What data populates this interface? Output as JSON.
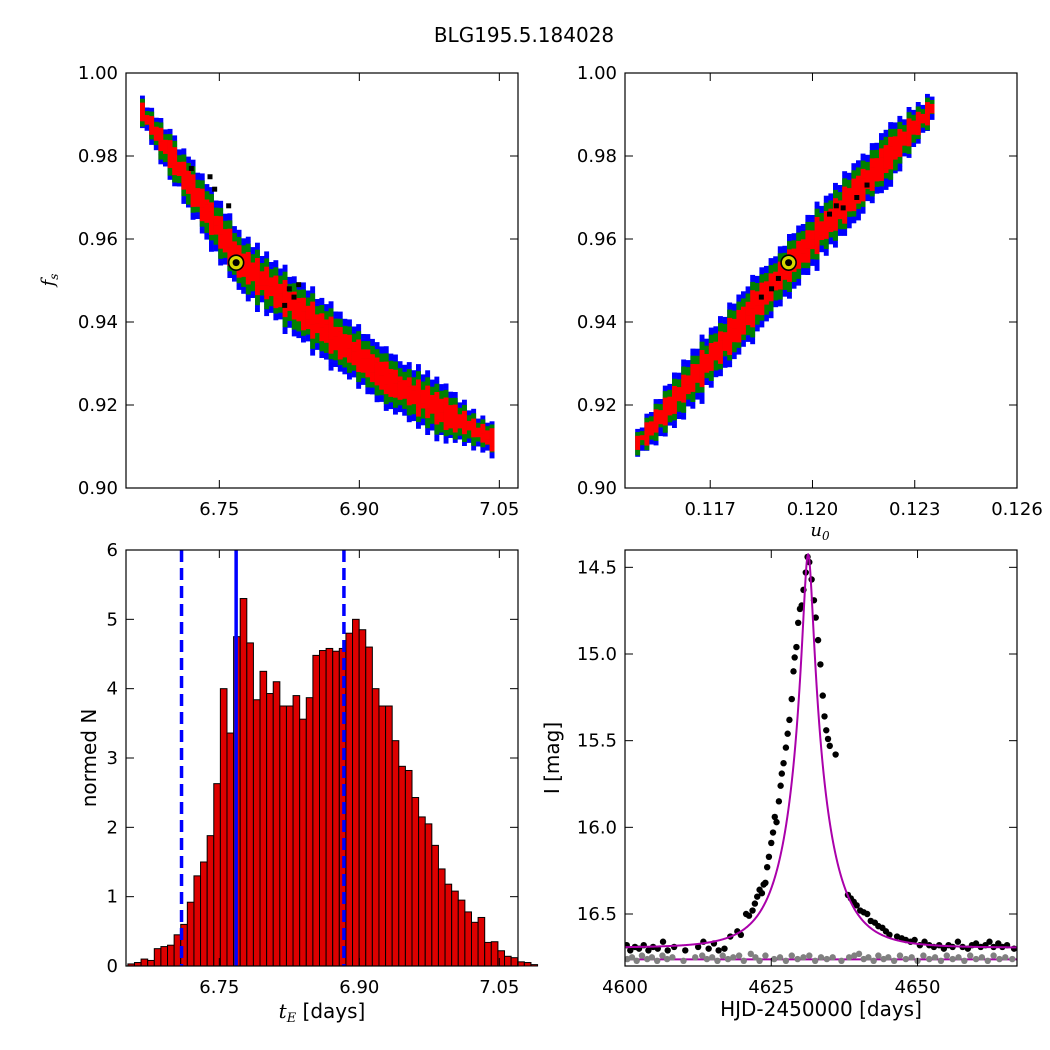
{
  "title": "BLG195.5.184028",
  "chart_data": [
    {
      "id": "panel_fs_te",
      "type": "heatmap",
      "xlabel": "",
      "ylabel": "f_s",
      "xlim": [
        6.65,
        7.07
      ],
      "ylim": [
        0.9,
        1.0
      ],
      "xticks": [
        6.75,
        6.9,
        7.05
      ],
      "xtick_labels": [
        "6.75",
        "6.90",
        "7.05"
      ],
      "yticks": [
        0.9,
        0.92,
        0.94,
        0.96,
        0.98,
        1.0
      ],
      "ytick_labels": [
        "0.90",
        "0.92",
        "0.94",
        "0.96",
        "0.98",
        "1.00"
      ],
      "region": {
        "spine": [
          [
            6.665,
            0.991
          ],
          [
            6.77,
            0.9545
          ],
          [
            6.93,
            0.926
          ],
          [
            7.04,
            0.912
          ]
        ],
        "bands": [
          {
            "level": "outer",
            "color": "#0000ff",
            "halfwidth": 0.0067
          },
          {
            "level": "middle",
            "color": "#008000",
            "halfwidth": 0.005
          },
          {
            "level": "inner",
            "color": "#ff0000",
            "halfwidth": 0.003
          }
        ]
      },
      "black_points": [
        [
          6.74,
          0.975
        ],
        [
          6.745,
          0.972
        ],
        [
          6.76,
          0.968
        ],
        [
          6.72,
          0.977
        ],
        [
          6.825,
          0.948
        ],
        [
          6.83,
          0.946
        ],
        [
          6.82,
          0.944
        ],
        [
          6.835,
          0.949
        ]
      ],
      "best_fit": {
        "x": 6.768,
        "y": 0.9543
      }
    },
    {
      "id": "panel_fs_u0",
      "type": "heatmap",
      "xlabel": "u_0",
      "ylabel": "",
      "xlim": [
        0.1145,
        0.126
      ],
      "ylim": [
        0.9,
        1.0
      ],
      "xticks": [
        0.117,
        0.12,
        0.123,
        0.126
      ],
      "xtick_labels": [
        "0.117",
        "0.120",
        "0.123",
        "0.126"
      ],
      "yticks": [
        0.9,
        0.92,
        0.94,
        0.96,
        0.98,
        1.0
      ],
      "ytick_labels": [
        "0.90",
        "0.92",
        "0.94",
        "0.96",
        "0.98",
        "1.00"
      ],
      "region": {
        "spine": [
          [
            0.1148,
            0.911
          ],
          [
            0.1193,
            0.9543
          ],
          [
            0.1235,
            0.9925
          ]
        ],
        "bands": [
          {
            "level": "outer",
            "color": "#0000ff",
            "halfwidth": 0.0067
          },
          {
            "level": "middle",
            "color": "#008000",
            "halfwidth": 0.005
          },
          {
            "level": "inner",
            "color": "#ff0000",
            "halfwidth": 0.003
          }
        ]
      },
      "black_points": [
        [
          0.1185,
          0.946
        ],
        [
          0.1188,
          0.948
        ],
        [
          0.119,
          0.9505
        ],
        [
          0.1205,
          0.966
        ],
        [
          0.1207,
          0.968
        ],
        [
          0.1209,
          0.9675
        ],
        [
          0.1213,
          0.97
        ],
        [
          0.1216,
          0.973
        ]
      ],
      "best_fit": {
        "x": 0.1193,
        "y": 0.9543
      }
    },
    {
      "id": "panel_te_hist",
      "type": "bar",
      "xlabel_math": "t_E",
      "xlabel": "[days]",
      "ylabel": "normed N",
      "xlim": [
        6.65,
        7.07
      ],
      "ylim": [
        0,
        6
      ],
      "xticks": [
        6.75,
        6.9,
        7.05
      ],
      "xtick_labels": [
        "6.75",
        "6.90",
        "7.05"
      ],
      "yticks": [
        0,
        1,
        2,
        3,
        4,
        5,
        6
      ],
      "ytick_labels": [
        "0",
        "1",
        "2",
        "3",
        "4",
        "5",
        "6"
      ],
      "bin_start": 6.652,
      "bin_width": 0.00708,
      "values": [
        0.03,
        0.05,
        0.1,
        0.08,
        0.25,
        0.28,
        0.3,
        0.45,
        0.6,
        0.92,
        1.3,
        1.5,
        1.88,
        2.63,
        4.0,
        3.36,
        4.75,
        5.3,
        4.66,
        3.84,
        4.25,
        3.93,
        4.1,
        3.75,
        3.75,
        3.9,
        3.56,
        3.87,
        4.48,
        4.55,
        4.58,
        4.54,
        4.58,
        4.8,
        5.0,
        4.85,
        4.6,
        4.0,
        3.75,
        3.75,
        3.25,
        2.88,
        2.82,
        2.43,
        2.15,
        2.05,
        1.74,
        1.4,
        1.18,
        1.08,
        0.95,
        0.78,
        0.63,
        0.7,
        0.34,
        0.35,
        0.22,
        0.14,
        0.12,
        0.06,
        0.05,
        0.02
      ],
      "bar_color": "#dd0000",
      "lines": [
        {
          "x": 6.768,
          "style": "solid",
          "color": "#0000ff"
        },
        {
          "x": 6.7095,
          "style": "dashed",
          "color": "#0000ff"
        },
        {
          "x": 6.8835,
          "style": "dashed",
          "color": "#0000ff"
        }
      ]
    },
    {
      "id": "panel_lightcurve",
      "type": "scatter",
      "xlabel": "HJD-2450000 [days]",
      "ylabel": "I [mag]",
      "xlim": [
        4600,
        4667
      ],
      "ylim": [
        16.8,
        14.4
      ],
      "y_inverted": true,
      "xticks": [
        4600,
        4625,
        4650
      ],
      "xtick_labels": [
        "4600",
        "4625",
        "4650"
      ],
      "yticks": [
        14.5,
        15.0,
        15.5,
        16.0,
        16.5
      ],
      "ytick_labels": [
        "14.5",
        "15.0",
        "15.5",
        "16.0",
        "16.5"
      ],
      "model": {
        "t0": 4631.3,
        "tE": 6.768,
        "u0": 0.1193,
        "fs": 0.9543,
        "baseline": 16.695,
        "color": "#aa00aa"
      },
      "baseline_line": {
        "mag": 16.762,
        "color": "#aa00aa"
      },
      "data_points": [
        [
          4600.3,
          16.68
        ],
        [
          4600.9,
          16.71
        ],
        [
          4601.7,
          16.69
        ],
        [
          4602.4,
          16.7
        ],
        [
          4603.2,
          16.68
        ],
        [
          4604.0,
          16.71
        ],
        [
          4604.8,
          16.69
        ],
        [
          4605.6,
          16.7
        ],
        [
          4606.5,
          16.66
        ],
        [
          4607.3,
          16.71
        ],
        [
          4608.4,
          16.69
        ],
        [
          4610.3,
          16.71
        ],
        [
          4612.5,
          16.69
        ],
        [
          4613.4,
          16.66
        ],
        [
          4614.3,
          16.7
        ],
        [
          4615.2,
          16.67
        ],
        [
          4616.0,
          16.71
        ],
        [
          4617.0,
          16.7
        ],
        [
          4618.0,
          16.63
        ],
        [
          4619.2,
          16.6
        ],
        [
          4619.8,
          16.62
        ],
        [
          4620.7,
          16.5
        ],
        [
          4621.2,
          16.51
        ],
        [
          4621.8,
          16.48
        ],
        [
          4622.2,
          16.44
        ],
        [
          4622.6,
          16.4
        ],
        [
          4623.0,
          16.36
        ],
        [
          4623.4,
          16.38
        ],
        [
          4623.7,
          16.33
        ],
        [
          4624.0,
          16.32
        ],
        [
          4624.3,
          16.23
        ],
        [
          4624.6,
          16.17
        ],
        [
          4625.0,
          16.09
        ],
        [
          4625.3,
          16.03
        ],
        [
          4625.6,
          15.94
        ],
        [
          4625.9,
          15.97
        ],
        [
          4626.3,
          15.85
        ],
        [
          4626.6,
          15.76
        ],
        [
          4626.8,
          15.69
        ],
        [
          4627.1,
          15.63
        ],
        [
          4627.5,
          15.54
        ],
        [
          4627.8,
          15.46
        ],
        [
          4628.1,
          15.38
        ],
        [
          4628.5,
          15.26
        ],
        [
          4628.8,
          15.1
        ],
        [
          4629.0,
          15.02
        ],
        [
          4629.3,
          14.96
        ],
        [
          4629.6,
          14.82
        ],
        [
          4629.9,
          14.74
        ],
        [
          4630.2,
          14.72
        ],
        [
          4630.5,
          14.63
        ],
        [
          4630.9,
          14.53
        ],
        [
          4631.2,
          14.44
        ],
        [
          4631.5,
          14.47
        ],
        [
          4631.9,
          14.57
        ],
        [
          4632.3,
          14.69
        ],
        [
          4632.6,
          14.79
        ],
        [
          4633.0,
          14.92
        ],
        [
          4633.4,
          15.06
        ],
        [
          4633.8,
          15.24
        ],
        [
          4634.1,
          15.36
        ],
        [
          4634.4,
          15.44
        ],
        [
          4634.7,
          15.49
        ],
        [
          4635.0,
          15.53
        ],
        [
          4636.0,
          15.58
        ],
        [
          4638.1,
          16.39
        ],
        [
          4638.6,
          16.41
        ],
        [
          4639.1,
          16.43
        ],
        [
          4639.6,
          16.45
        ],
        [
          4640.2,
          16.48
        ],
        [
          4640.8,
          16.49
        ],
        [
          4641.4,
          16.5
        ],
        [
          4642.0,
          16.54
        ],
        [
          4642.7,
          16.55
        ],
        [
          4643.3,
          16.57
        ],
        [
          4644.0,
          16.58
        ],
        [
          4644.6,
          16.6
        ],
        [
          4645.2,
          16.62
        ],
        [
          4646.5,
          16.63
        ],
        [
          4647.3,
          16.64
        ],
        [
          4648.0,
          16.65
        ],
        [
          4648.8,
          16.66
        ],
        [
          4649.5,
          16.65
        ],
        [
          4650.4,
          16.68
        ],
        [
          4651.2,
          16.66
        ],
        [
          4652.0,
          16.68
        ],
        [
          4652.8,
          16.69
        ],
        [
          4653.7,
          16.68
        ],
        [
          4654.5,
          16.7
        ],
        [
          4655.3,
          16.68
        ],
        [
          4656.0,
          16.69
        ],
        [
          4656.9,
          16.66
        ],
        [
          4657.7,
          16.69
        ],
        [
          4658.6,
          16.7
        ],
        [
          4659.3,
          16.68
        ],
        [
          4660.0,
          16.67
        ],
        [
          4660.8,
          16.69
        ],
        [
          4661.6,
          16.68
        ],
        [
          4662.3,
          16.66
        ],
        [
          4663.0,
          16.69
        ],
        [
          4663.8,
          16.67
        ],
        [
          4664.5,
          16.69
        ],
        [
          4665.3,
          16.68
        ],
        [
          4666.5,
          16.7
        ]
      ],
      "data_color": "#000000",
      "residual_points": [
        [
          4600.4,
          16.76
        ],
        [
          4601.2,
          16.75
        ],
        [
          4602.0,
          16.77
        ],
        [
          4602.9,
          16.74
        ],
        [
          4603.8,
          16.76
        ],
        [
          4604.6,
          16.75
        ],
        [
          4605.5,
          16.77
        ],
        [
          4606.4,
          16.74
        ],
        [
          4607.2,
          16.76
        ],
        [
          4608.1,
          16.75
        ],
        [
          4610.0,
          16.77
        ],
        [
          4612.0,
          16.75
        ],
        [
          4613.2,
          16.74
        ],
        [
          4614.0,
          16.76
        ],
        [
          4614.9,
          16.75
        ],
        [
          4615.8,
          16.77
        ],
        [
          4616.7,
          16.74
        ],
        [
          4617.6,
          16.76
        ],
        [
          4618.5,
          16.75
        ],
        [
          4619.5,
          16.74
        ],
        [
          4620.3,
          16.77
        ],
        [
          4621.5,
          16.73
        ],
        [
          4622.3,
          16.75
        ],
        [
          4623.0,
          16.77
        ],
        [
          4624.0,
          16.74
        ],
        [
          4625.5,
          16.76
        ],
        [
          4626.5,
          16.75
        ],
        [
          4627.5,
          16.77
        ],
        [
          4628.5,
          16.74
        ],
        [
          4629.5,
          16.76
        ],
        [
          4630.5,
          16.75
        ],
        [
          4631.5,
          16.74
        ],
        [
          4632.5,
          16.77
        ],
        [
          4633.5,
          16.75
        ],
        [
          4634.5,
          16.76
        ],
        [
          4635.5,
          16.75
        ],
        [
          4637.0,
          16.77
        ],
        [
          4638.3,
          16.75
        ],
        [
          4639.2,
          16.74
        ],
        [
          4640.0,
          16.73
        ],
        [
          4640.8,
          16.76
        ],
        [
          4641.6,
          16.75
        ],
        [
          4642.5,
          16.77
        ],
        [
          4643.3,
          16.74
        ],
        [
          4644.2,
          16.76
        ],
        [
          4645.0,
          16.75
        ],
        [
          4646.0,
          16.77
        ],
        [
          4647.0,
          16.74
        ],
        [
          4648.0,
          16.76
        ],
        [
          4649.0,
          16.75
        ],
        [
          4650.0,
          16.77
        ],
        [
          4651.0,
          16.74
        ],
        [
          4652.0,
          16.76
        ],
        [
          4653.0,
          16.75
        ],
        [
          4654.0,
          16.77
        ],
        [
          4655.0,
          16.74
        ],
        [
          4656.0,
          16.76
        ],
        [
          4657.0,
          16.75
        ],
        [
          4658.0,
          16.77
        ],
        [
          4659.0,
          16.74
        ],
        [
          4660.0,
          16.76
        ],
        [
          4661.0,
          16.75
        ],
        [
          4662.0,
          16.77
        ],
        [
          4663.0,
          16.74
        ],
        [
          4664.0,
          16.76
        ],
        [
          4665.0,
          16.75
        ],
        [
          4666.2,
          16.76
        ]
      ],
      "residual_color": "#808080"
    }
  ]
}
